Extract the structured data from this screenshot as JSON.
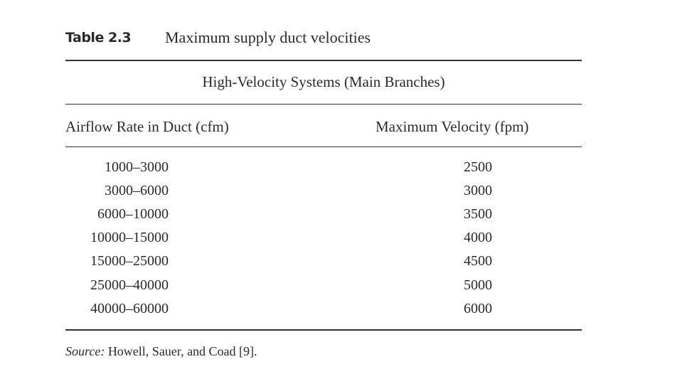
{
  "table": {
    "label": "Table 2.3",
    "caption": "Maximum supply duct velocities",
    "group_header": "High-Velocity Systems (Main Branches)",
    "columns": [
      "Airflow Rate in Duct (cfm)",
      "Maximum Velocity (fpm)"
    ],
    "rows": [
      [
        "1000–3000",
        2500
      ],
      [
        "3000–6000",
        3000
      ],
      [
        "6000–10000",
        3500
      ],
      [
        "10000–15000",
        4000
      ],
      [
        "15000–25000",
        4500
      ],
      [
        "25000–40000",
        5000
      ],
      [
        "40000–60000",
        6000
      ]
    ],
    "source_label": "Source:",
    "source_text": "Howell, Sauer, and Coad [9]."
  }
}
